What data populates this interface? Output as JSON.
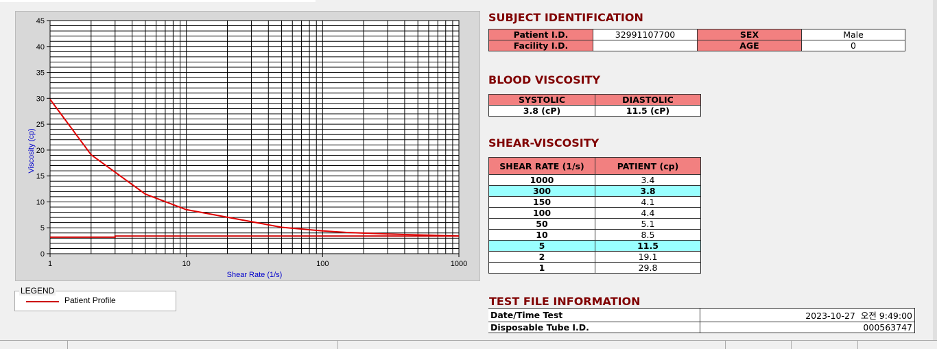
{
  "subject": {
    "title": "SUBJECT IDENTIFICATION",
    "patient_id_label": "Patient I.D.",
    "patient_id": "32991107700",
    "sex_label": "SEX",
    "sex": "Male",
    "facility_label": "Facility I.D.",
    "facility": "",
    "age_label": "AGE",
    "age": "0"
  },
  "blood": {
    "title": "BLOOD VISCOSITY",
    "systolic_label": "SYSTOLIC",
    "diastolic_label": "DIASTOLIC",
    "systolic": "3.8 (cP)",
    "diastolic": "11.5 (cP)"
  },
  "shear": {
    "title": "SHEAR-VISCOSITY",
    "col1": "SHEAR RATE (1/s)",
    "col2": "PATIENT (cp)",
    "rows": [
      [
        "1000",
        "3.4"
      ],
      [
        "300",
        "3.8"
      ],
      [
        "150",
        "4.1"
      ],
      [
        "100",
        "4.4"
      ],
      [
        "50",
        "5.1"
      ],
      [
        "10",
        "8.5"
      ],
      [
        "5",
        "11.5"
      ],
      [
        "2",
        "19.1"
      ],
      [
        "1",
        "29.8"
      ]
    ],
    "highlight_color": "#99ffff"
  },
  "testfile": {
    "title": "TEST FILE INFORMATION",
    "date_label": "Date/Time Test",
    "date": "2023-10-27  오전 9:49:00",
    "tube_label": "Disposable Tube I.D.",
    "tube": "000563747"
  },
  "legend": {
    "title": "LEGEND",
    "entry": "Patient Profile"
  },
  "chart_data": {
    "type": "line",
    "xlabel": "Shear Rate (1/s)",
    "ylabel": "Viscosity (cp)",
    "xscale": "log",
    "xlim": [
      1,
      1000
    ],
    "ylim": [
      0,
      45
    ],
    "grid": true,
    "xticks": [
      "1",
      "10",
      "100",
      "1000"
    ],
    "yticks": [
      "0",
      "5",
      "10",
      "15",
      "20",
      "25",
      "30",
      "35",
      "40",
      "45"
    ],
    "series": [
      {
        "name": "Patient Profile",
        "color": "#e00000",
        "x": [
          1,
          2,
          5,
          10,
          50,
          100,
          150,
          300,
          1000
        ],
        "y": [
          29.8,
          19.1,
          11.5,
          8.5,
          5.1,
          4.4,
          4.1,
          3.8,
          3.4
        ]
      },
      {
        "color": "#cc0000",
        "x": [
          1,
          3,
          3,
          1000
        ],
        "y": [
          3.2,
          3.2,
          3.4,
          3.4
        ]
      }
    ]
  }
}
